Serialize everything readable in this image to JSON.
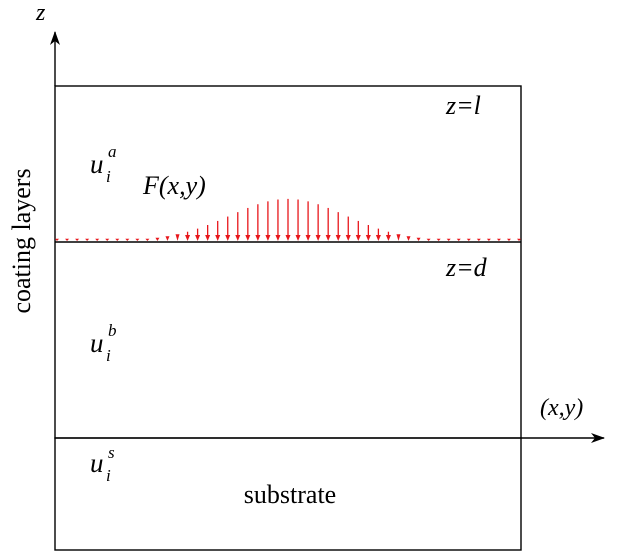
{
  "axes": {
    "vertical_label": "z",
    "horizontal_label": "(x,y)"
  },
  "labels": {
    "top_boundary": "z=l",
    "interface": "z=d",
    "load_function": "F(x,y)",
    "side_label": "coating layers",
    "substrate": "substrate"
  },
  "fields": {
    "layer_a": {
      "base": "u",
      "sub": "i",
      "sup": "a"
    },
    "layer_b": {
      "base": "u",
      "sub": "i",
      "sup": "b"
    },
    "substrate": {
      "base": "u",
      "sub": "i",
      "sup": "s"
    }
  },
  "colors": {
    "load_arrows": "#e8161b",
    "lines": "#000000"
  },
  "load_profile": {
    "shape": "gaussian",
    "arrow_count": 47,
    "peak_fraction": 0.27,
    "spread_fraction": 0.25
  }
}
